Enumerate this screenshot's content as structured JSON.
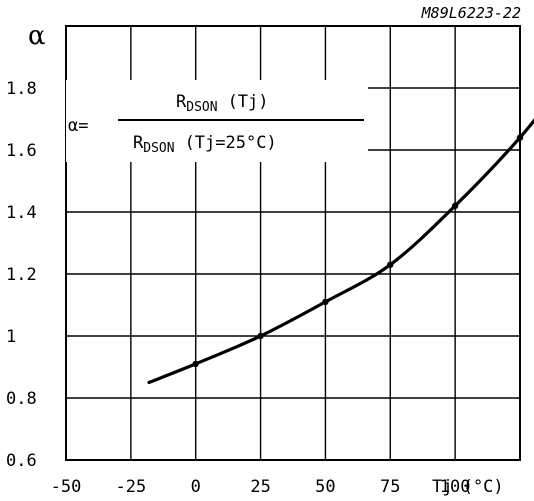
{
  "chart_data": {
    "type": "line",
    "reference": "M89L6223-22",
    "ylabel": "α",
    "xlabel": "Tj (°C)",
    "x_tick_labels": [
      "-50",
      "-25",
      "0",
      "25",
      "50",
      "75",
      "100"
    ],
    "y_tick_labels": [
      "0.6",
      "0.8",
      "1",
      "1.2",
      "1.4",
      "1.6",
      "1.8"
    ],
    "xlim": [
      -50,
      125
    ],
    "ylim": [
      0.6,
      2.0
    ],
    "grid": true,
    "formula": {
      "lhs": "α=",
      "numerator": {
        "main": "R",
        "sub": "DSON",
        "arg": "(Tj)"
      },
      "denominator": {
        "main": "R",
        "sub": "DSON",
        "arg": "(Tj=25°C)"
      }
    },
    "series": [
      {
        "x": [
          -18,
          0,
          25,
          50,
          75,
          100,
          125,
          140
        ],
        "y": [
          0.85,
          0.91,
          1.0,
          1.11,
          1.23,
          1.42,
          1.64,
          1.8
        ],
        "markers": [
          0,
          25,
          50,
          75,
          100,
          125
        ]
      }
    ]
  }
}
